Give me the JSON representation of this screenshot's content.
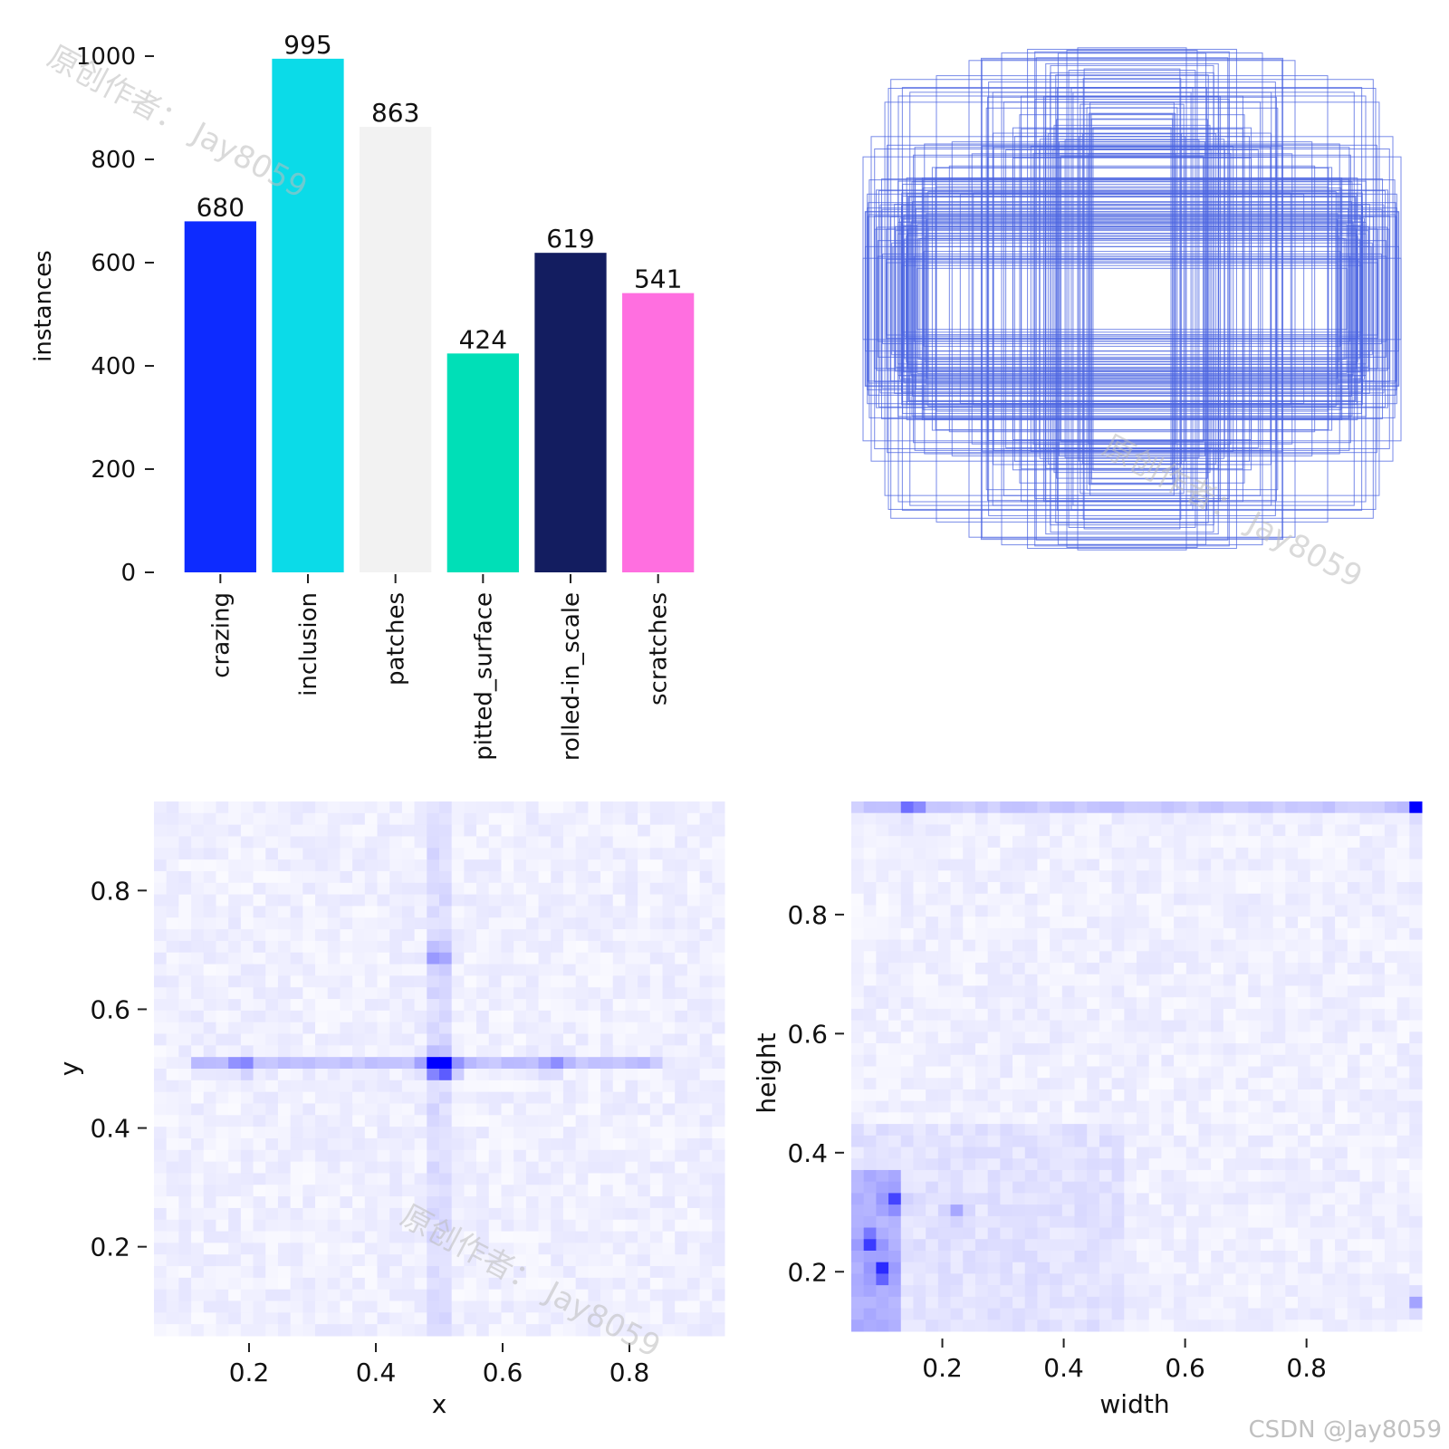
{
  "chart_data": [
    {
      "type": "bar",
      "categories": [
        "crazing",
        "inclusion",
        "patches",
        "pitted_surface",
        "rolled-in_scale",
        "scratches"
      ],
      "values": [
        680,
        995,
        863,
        424,
        619,
        541
      ],
      "colors": [
        "#0d2bff",
        "#0bdbe8",
        "#f2f2f2",
        "#00dfb7",
        "#131d60",
        "#ff6fe0"
      ],
      "xlabel": "",
      "ylabel": "instances",
      "yticks": [
        "0",
        "200",
        "400",
        "600",
        "800",
        "1000"
      ],
      "ylim": [
        0,
        1000
      ],
      "data_labels": [
        "680",
        "995",
        "863",
        "424",
        "619",
        "541"
      ]
    },
    {
      "type": "scatter",
      "description_role": "bounding box outlines centered on a common point",
      "boxes": [
        {
          "w": 0.3,
          "h": 0.92
        },
        {
          "w": 0.48,
          "h": 0.97
        },
        {
          "w": 0.6,
          "h": 0.94
        },
        {
          "w": 0.72,
          "h": 0.88
        },
        {
          "w": 0.86,
          "h": 0.8
        },
        {
          "w": 0.96,
          "h": 0.64
        },
        {
          "w": 0.99,
          "h": 0.56
        },
        {
          "w": 0.99,
          "h": 0.16
        },
        {
          "w": 0.2,
          "h": 0.99
        }
      ],
      "color": "#4a63e0"
    },
    {
      "type": "heatmap",
      "xlabel": "x",
      "ylabel": "y",
      "xticks": [
        "0.2",
        "0.4",
        "0.6",
        "0.8"
      ],
      "yticks": [
        "0.2",
        "0.4",
        "0.6",
        "0.8"
      ],
      "xlim": [
        0.05,
        0.95
      ],
      "ylim": [
        0.05,
        0.95
      ],
      "hotspots": [
        {
          "x": 0.51,
          "y": 0.505,
          "value": 1.0
        },
        {
          "x": 0.49,
          "y": 0.505,
          "value": 0.6
        },
        {
          "x": 0.5,
          "y": 0.69,
          "value": 0.35
        },
        {
          "x": 0.19,
          "y": 0.505,
          "value": 0.35
        },
        {
          "x": 0.68,
          "y": 0.505,
          "value": 0.3
        }
      ],
      "color": "#0000ff"
    },
    {
      "type": "heatmap",
      "xlabel": "width",
      "ylabel": "height",
      "xticks": [
        "0.2",
        "0.4",
        "0.6",
        "0.8"
      ],
      "yticks": [
        "0.2",
        "0.4",
        "0.6",
        "0.8"
      ],
      "xlim": [
        0.05,
        0.99
      ],
      "ylim": [
        0.1,
        0.99
      ],
      "hotspots": [
        {
          "x": 0.985,
          "y": 0.985,
          "value": 1.0
        },
        {
          "x": 0.1,
          "y": 0.2,
          "value": 0.6
        },
        {
          "x": 0.08,
          "y": 0.25,
          "value": 0.5
        },
        {
          "x": 0.12,
          "y": 0.32,
          "value": 0.45
        },
        {
          "x": 0.15,
          "y": 0.985,
          "value": 0.5
        },
        {
          "x": 0.985,
          "y": 0.15,
          "value": 0.35
        },
        {
          "x": 0.22,
          "y": 0.3,
          "value": 0.3
        }
      ],
      "color": "#0000ff"
    }
  ],
  "watermark": "原创作者： Jay8059",
  "credit": "CSDN @Jay8059"
}
